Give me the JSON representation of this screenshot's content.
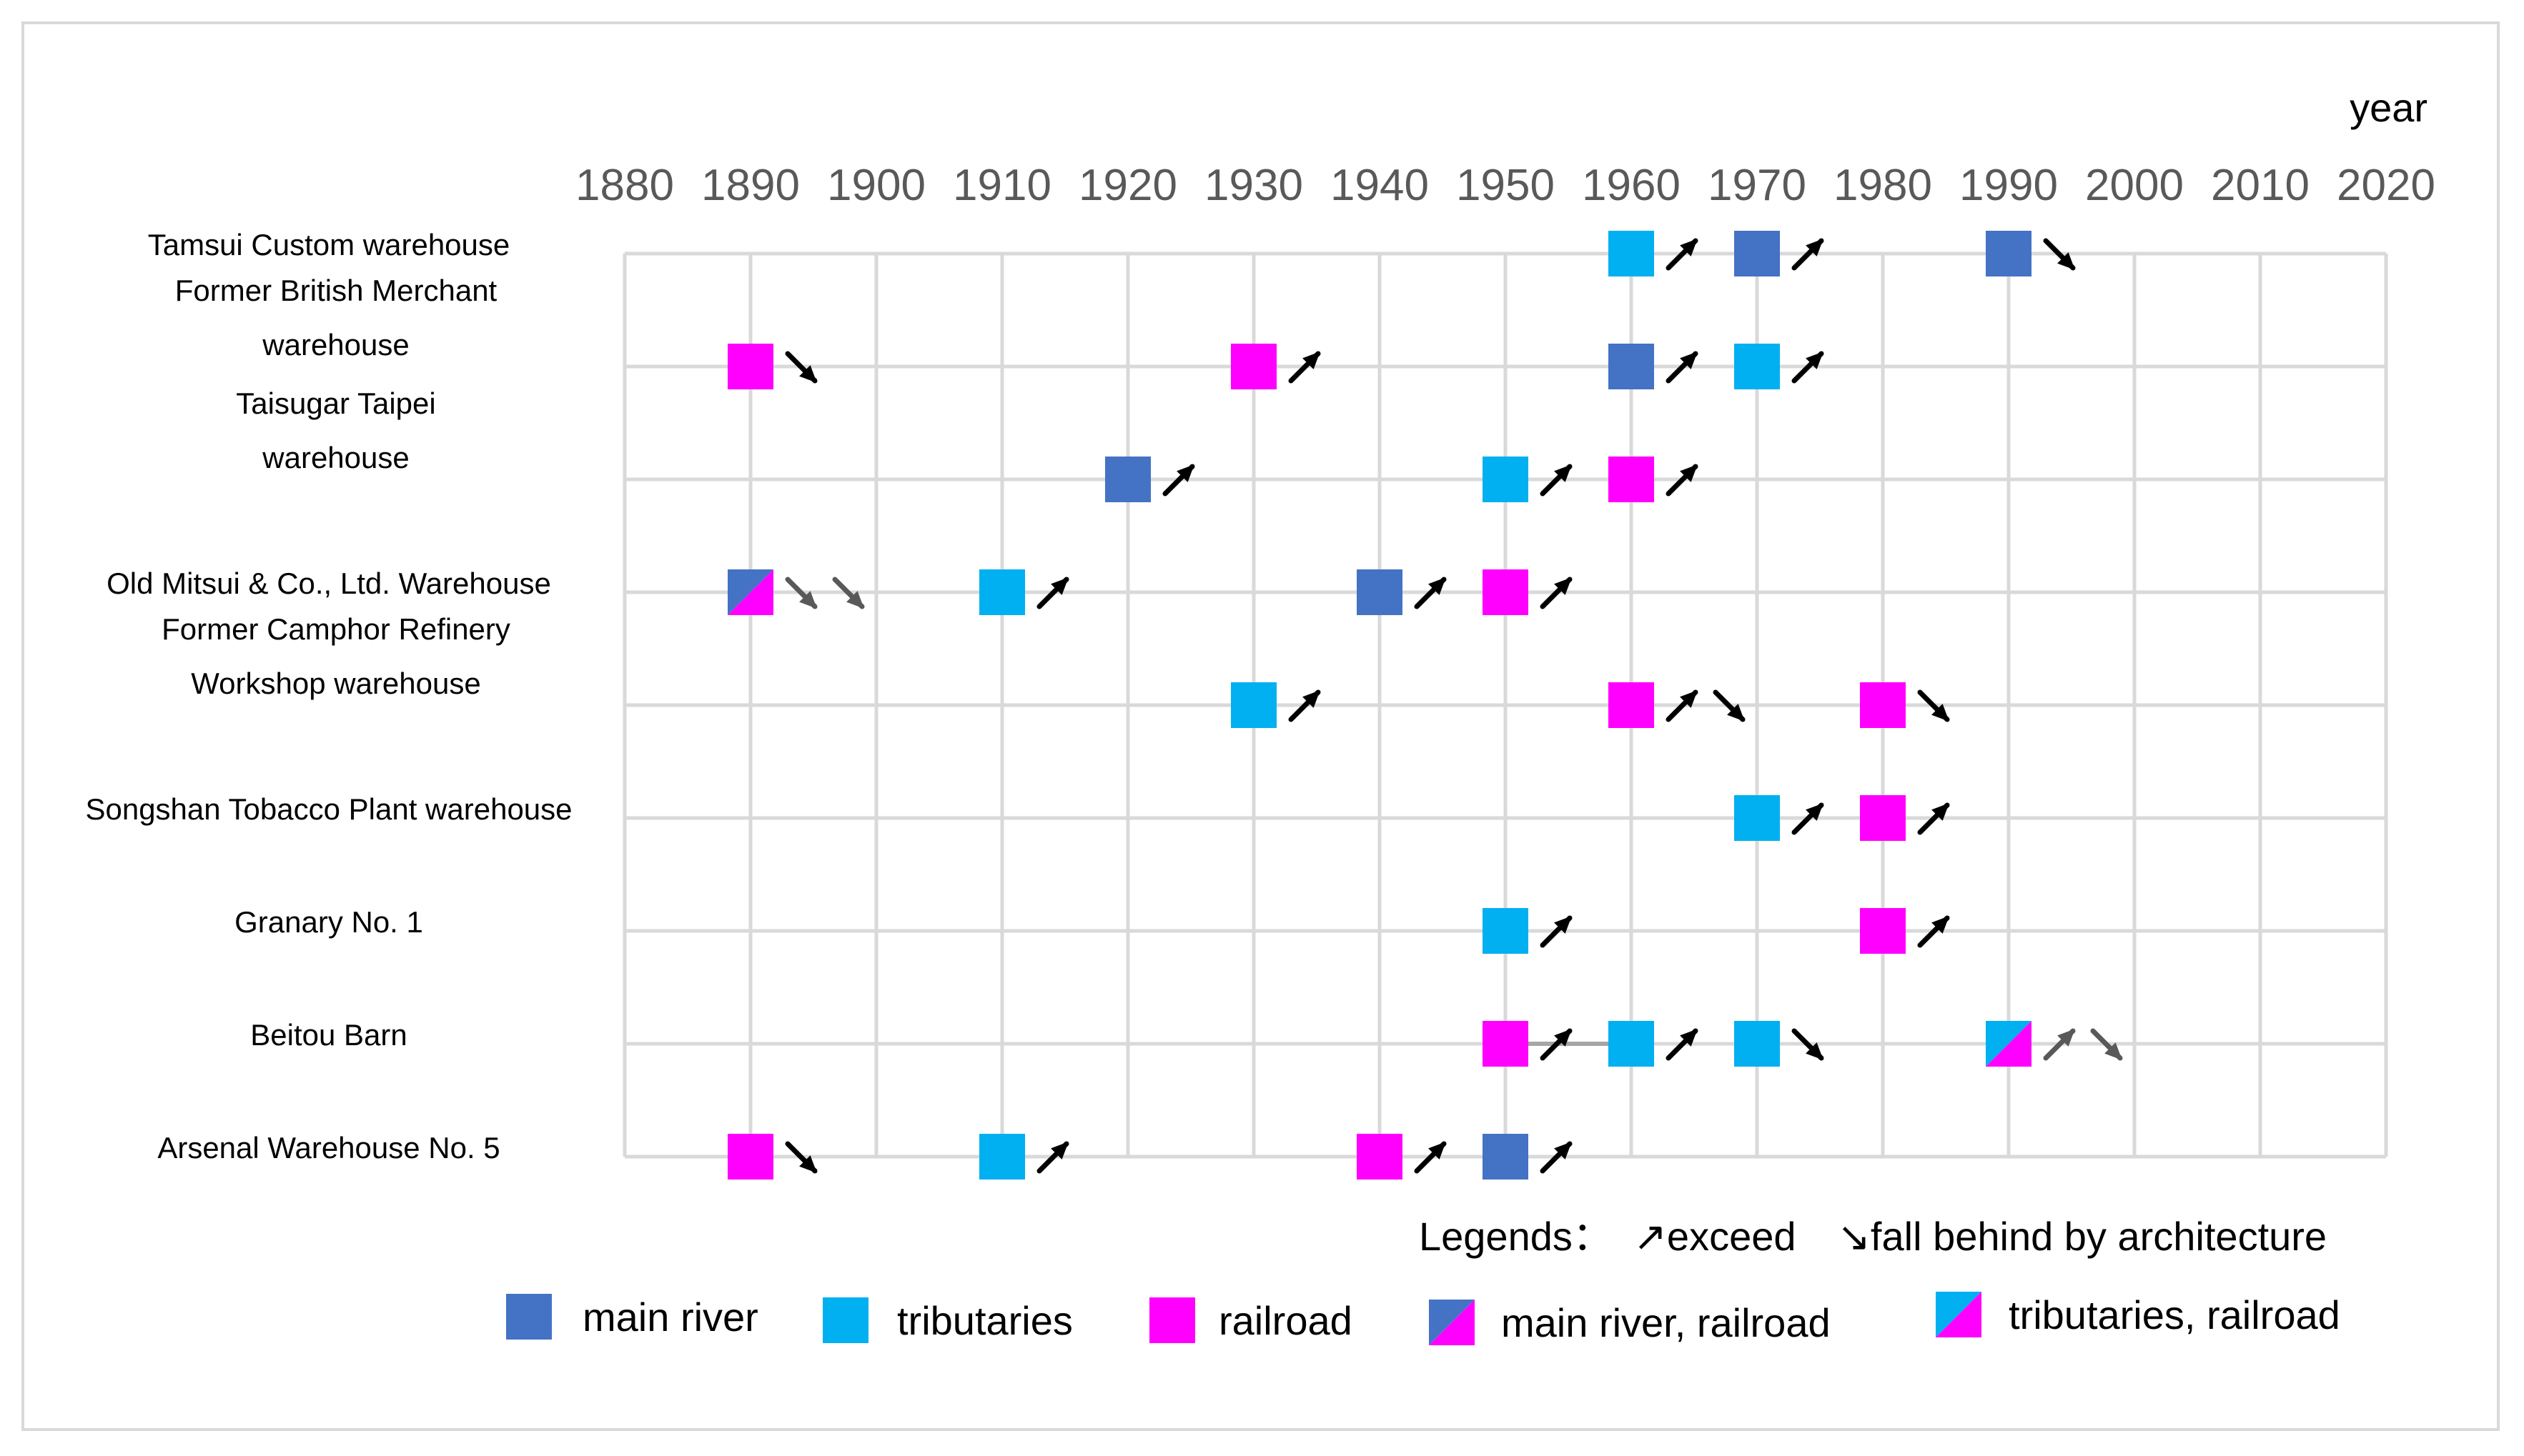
{
  "chart_data": {
    "type": "scatter",
    "title": "",
    "xlabel": "year",
    "ylabel": "",
    "xlim": [
      1880,
      2020
    ],
    "x_ticks": [
      "1880",
      "1890",
      "1900",
      "1910",
      "1920",
      "1930",
      "1940",
      "1950",
      "1960",
      "1970",
      "1980",
      "1990",
      "2000",
      "2010",
      "2020"
    ],
    "grid": true,
    "colors": {
      "main river": "#4472C4",
      "tributaries": "#00B0F0",
      "railroad": "#FF00FF"
    },
    "rows": [
      {
        "label": [
          "Tamsui Custom warehouse"
        ],
        "events": [
          {
            "year": 1960,
            "type": "tributaries",
            "trend": [
              "exceed"
            ]
          },
          {
            "year": 1970,
            "type": "main river",
            "trend": [
              "exceed"
            ]
          },
          {
            "year": 1990,
            "type": "main river",
            "trend": [
              "fall behind"
            ]
          }
        ]
      },
      {
        "label": [
          "Former British Merchant",
          "warehouse"
        ],
        "events": [
          {
            "year": 1890,
            "type": "railroad",
            "trend": [
              "fall behind"
            ]
          },
          {
            "year": 1930,
            "type": "railroad",
            "trend": [
              "exceed"
            ]
          },
          {
            "year": 1960,
            "type": "main river",
            "trend": [
              "exceed"
            ]
          },
          {
            "year": 1970,
            "type": "tributaries",
            "trend": [
              "exceed"
            ]
          }
        ]
      },
      {
        "label": [
          "Taisugar Taipei",
          "warehouse"
        ],
        "events": [
          {
            "year": 1920,
            "type": "main river",
            "trend": [
              "exceed"
            ]
          },
          {
            "year": 1950,
            "type": "tributaries",
            "trend": [
              "exceed"
            ]
          },
          {
            "year": 1960,
            "type": "railroad",
            "trend": [
              "exceed"
            ]
          }
        ]
      },
      {
        "label": [
          "Old Mitsui & Co., Ltd. Warehouse"
        ],
        "events": [
          {
            "year": 1890,
            "type": "main river, railroad",
            "trend": [
              "fall behind",
              "fall behind"
            ]
          },
          {
            "year": 1910,
            "type": "tributaries",
            "trend": [
              "exceed"
            ]
          },
          {
            "year": 1940,
            "type": "main river",
            "trend": [
              "exceed"
            ]
          },
          {
            "year": 1950,
            "type": "railroad",
            "trend": [
              "exceed"
            ]
          }
        ]
      },
      {
        "label": [
          "Former Camphor Refinery",
          "Workshop warehouse"
        ],
        "events": [
          {
            "year": 1930,
            "type": "tributaries",
            "trend": [
              "exceed"
            ]
          },
          {
            "year": 1960,
            "type": "railroad",
            "trend": [
              "exceed",
              "fall behind"
            ]
          },
          {
            "year": 1980,
            "type": "railroad",
            "trend": [
              "fall behind"
            ]
          }
        ]
      },
      {
        "label": [
          "Songshan Tobacco Plant warehouse"
        ],
        "events": [
          {
            "year": 1970,
            "type": "tributaries",
            "trend": [
              "exceed"
            ]
          },
          {
            "year": 1980,
            "type": "railroad",
            "trend": [
              "exceed"
            ]
          }
        ]
      },
      {
        "label": [
          "Granary No. 1"
        ],
        "events": [
          {
            "year": 1950,
            "type": "tributaries",
            "trend": [
              "exceed"
            ]
          },
          {
            "year": 1980,
            "type": "railroad",
            "trend": [
              "exceed"
            ]
          }
        ]
      },
      {
        "label": [
          "Beitou Barn"
        ],
        "events": [
          {
            "year": 1950,
            "type": "railroad",
            "trend": [
              "exceed"
            ]
          },
          {
            "year": 1960,
            "type": "tributaries",
            "trend": [
              "exceed"
            ]
          },
          {
            "year": 1970,
            "type": "tributaries",
            "trend": [
              "fall behind"
            ]
          },
          {
            "year": 1990,
            "type": "tributaries, railroad",
            "trend": [
              "exceed",
              "fall behind"
            ]
          }
        ]
      },
      {
        "label": [
          "Arsenal Warehouse No. 5"
        ],
        "events": [
          {
            "year": 1890,
            "type": "railroad",
            "trend": [
              "fall behind"
            ]
          },
          {
            "year": 1910,
            "type": "tributaries",
            "trend": [
              "exceed"
            ]
          },
          {
            "year": 1940,
            "type": "railroad",
            "trend": [
              "exceed"
            ]
          },
          {
            "year": 1950,
            "type": "main river",
            "trend": [
              "exceed"
            ]
          }
        ]
      }
    ],
    "connectors": [
      {
        "row": 7,
        "from": 1950,
        "to": 1960
      }
    ],
    "legend_note": {
      "prefix": "Legends：",
      "exceed_glyph": "↗",
      "exceed": "exceed",
      "fall_glyph": "↘",
      "fall": "fall behind by architecture"
    },
    "legend": [
      "main river",
      "tributaries",
      "railroad",
      "main river, railroad",
      "tributaries, railroad"
    ]
  }
}
